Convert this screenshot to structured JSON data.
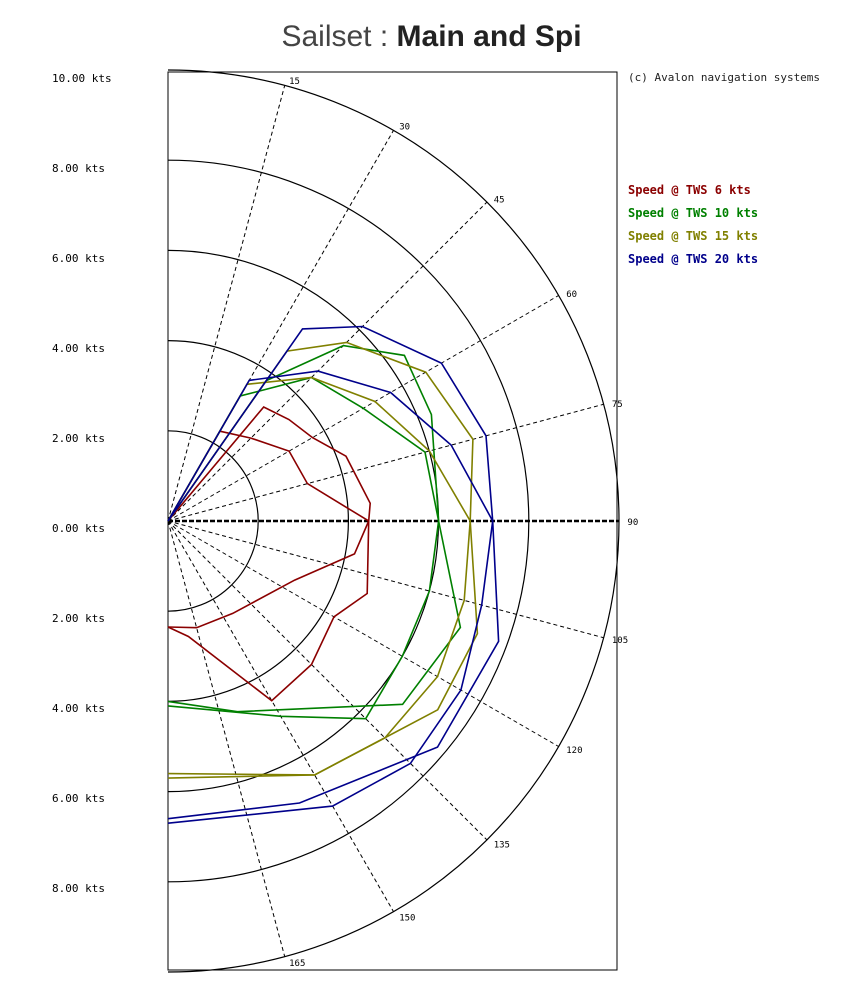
{
  "header": {
    "title_prefix": "Sailset : ",
    "title_bold": "Main and Spi"
  },
  "copyright": "(c) Avalon navigation systems",
  "chart_data": {
    "type": "line",
    "subtype": "polar",
    "y_tick_labels": [
      "10.00 kts",
      "8.00 kts",
      "6.00 kts",
      "4.00 kts",
      "2.00 kts",
      "0.00 kts",
      "2.00 kts",
      "4.00 kts",
      "6.00 kts",
      "8.00 kts"
    ],
    "speed_rings": [
      2,
      4,
      6,
      8,
      10
    ],
    "angle_labels": [
      "15",
      "30",
      "45",
      "60",
      "75",
      "90",
      "105",
      "120",
      "135",
      "150",
      "165"
    ],
    "radial_range": [
      0,
      10
    ],
    "legend_position": "top-right",
    "series": [
      {
        "name": "Speed @ TWS 6 kts",
        "color": "#8b0000",
        "points": [
          [
            0,
            0
          ],
          [
            30,
            2.3
          ],
          [
            45,
            2.6
          ],
          [
            60,
            3.1
          ],
          [
            75,
            3.2
          ],
          [
            90,
            4.45
          ],
          [
            110,
            4.7
          ],
          [
            120,
            4.25
          ],
          [
            135,
            4.5
          ],
          [
            150,
            4.6
          ],
          [
            170,
            2.6
          ],
          [
            180,
            2.35
          ]
        ],
        "points2": [
          [
            0,
            0
          ],
          [
            40,
            3.3
          ],
          [
            50,
            3.5
          ],
          [
            60,
            3.7
          ],
          [
            70,
            4.2
          ],
          [
            85,
            4.5
          ],
          [
            90,
            4.45
          ],
          [
            100,
            4.2
          ],
          [
            115,
            3.1
          ],
          [
            145,
            2.5
          ],
          [
            165,
            2.45
          ],
          [
            180,
            2.35
          ]
        ]
      },
      {
        "name": "Speed @ TWS 10 kts",
        "color": "#008000",
        "points": [
          [
            0,
            0
          ],
          [
            30,
            3.2
          ],
          [
            45,
            4.5
          ],
          [
            60,
            5.0
          ],
          [
            75,
            5.9
          ],
          [
            90,
            6.0
          ],
          [
            105,
            6.0
          ],
          [
            120,
            6.0
          ],
          [
            135,
            6.2
          ],
          [
            150,
            5.0
          ],
          [
            180,
            4.1
          ]
        ],
        "points2": [
          [
            0,
            0
          ],
          [
            35,
            3.8
          ],
          [
            45,
            5.5
          ],
          [
            55,
            6.4
          ],
          [
            68,
            6.3
          ],
          [
            90,
            6.0
          ],
          [
            110,
            6.9
          ],
          [
            128,
            6.6
          ],
          [
            160,
            4.5
          ],
          [
            180,
            4.0
          ]
        ]
      },
      {
        "name": "Speed @ TWS 15 kts",
        "color": "#808000",
        "points": [
          [
            0,
            0
          ],
          [
            30,
            3.5
          ],
          [
            45,
            4.5
          ],
          [
            60,
            5.3
          ],
          [
            75,
            6.0
          ],
          [
            90,
            6.7
          ],
          [
            105,
            6.8
          ],
          [
            120,
            6.9
          ],
          [
            135,
            6.8
          ],
          [
            150,
            6.5
          ],
          [
            180,
            5.6
          ]
        ],
        "points2": [
          [
            0,
            0
          ],
          [
            35,
            4.6
          ],
          [
            45,
            5.6
          ],
          [
            60,
            6.6
          ],
          [
            75,
            7.0
          ],
          [
            90,
            6.7
          ],
          [
            110,
            7.3
          ],
          [
            125,
            7.3
          ],
          [
            150,
            6.5
          ],
          [
            180,
            5.7
          ]
        ]
      },
      {
        "name": "Speed @ TWS 20 kts",
        "color": "#00008b",
        "points": [
          [
            0,
            0
          ],
          [
            30,
            3.6
          ],
          [
            45,
            4.7
          ],
          [
            60,
            5.7
          ],
          [
            75,
            6.5
          ],
          [
            90,
            7.2
          ],
          [
            105,
            7.2
          ],
          [
            120,
            7.5
          ],
          [
            135,
            7.6
          ],
          [
            150,
            7.3
          ],
          [
            180,
            6.7
          ]
        ],
        "points2": [
          [
            0,
            0
          ],
          [
            35,
            5.2
          ],
          [
            45,
            6.1
          ],
          [
            60,
            7.0
          ],
          [
            75,
            7.3
          ],
          [
            90,
            7.2
          ],
          [
            110,
            7.8
          ],
          [
            130,
            7.8
          ],
          [
            155,
            6.9
          ],
          [
            180,
            6.6
          ]
        ]
      }
    ]
  }
}
